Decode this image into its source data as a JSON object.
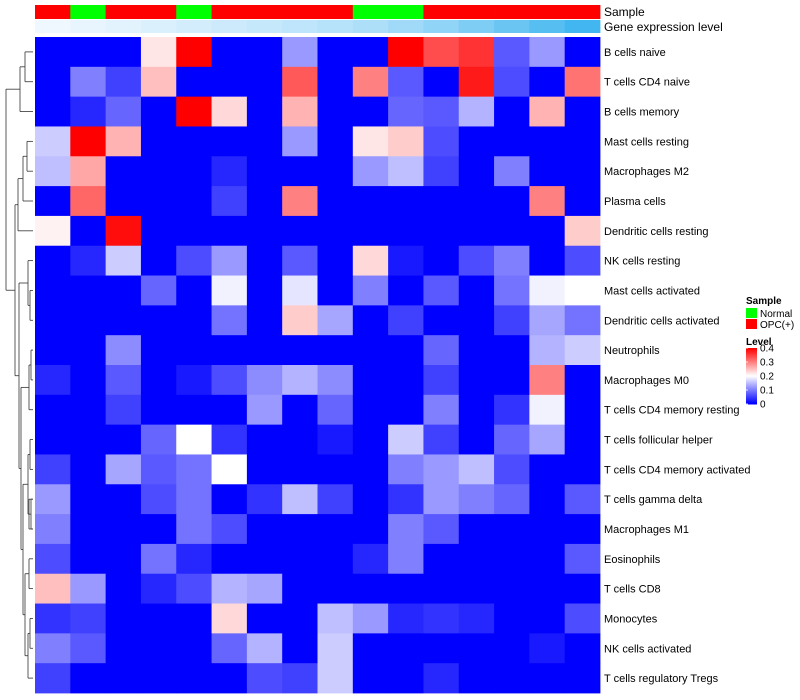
{
  "chart_data": {
    "type": "heatmap",
    "title": "",
    "annotation_labels": {
      "sample": "Sample",
      "gene_expression": "Gene expression level"
    },
    "rows": [
      "B cells naive",
      "T cells CD4 naive",
      "B cells memory",
      "Mast cells resting",
      "Macrophages M2",
      "Plasma cells",
      "Dendritic cells resting",
      "NK cells resting",
      "Mast cells activated",
      "Dendritic cells activated",
      "Neutrophils",
      "Macrophages M0",
      "T cells CD4 memory resting",
      "T cells follicular helper",
      "T cells CD4 memory activated",
      "T cells gamma delta",
      "Macrophages M1",
      "Eosinophils",
      "T cells CD8",
      "Monocytes",
      "NK cells activated",
      "T cells regulatory  Tregs"
    ],
    "column_count": 16,
    "sample_groups": [
      "OPC(+)",
      "Normal",
      "OPC(+)",
      "OPC(+)",
      "Normal",
      "OPC(+)",
      "OPC(+)",
      "OPC(+)",
      "OPC(+)",
      "Normal",
      "Normal",
      "OPC(+)",
      "OPC(+)",
      "OPC(+)",
      "OPC(+)",
      "OPC(+)"
    ],
    "gene_expression_level": [
      0.02,
      0.05,
      0.08,
      0.11,
      0.14,
      0.17,
      0.2,
      0.23,
      0.26,
      0.3,
      0.35,
      0.42,
      0.5,
      0.58,
      0.66,
      0.75
    ],
    "values": [
      [
        0,
        0,
        0,
        0.22,
        0.4,
        0,
        0,
        0.12,
        0,
        0,
        0.4,
        0.34,
        0.36,
        0.07,
        0.12,
        0
      ],
      [
        0,
        0.1,
        0.05,
        0.25,
        0,
        0,
        0,
        0.33,
        0,
        0.3,
        0.07,
        0,
        0.38,
        0.06,
        0,
        0.31
      ],
      [
        0,
        0.03,
        0.08,
        0,
        0.4,
        0.23,
        0,
        0.26,
        0,
        0,
        0.08,
        0.07,
        0.14,
        0,
        0.26,
        0
      ],
      [
        0.16,
        0.4,
        0.26,
        0,
        0,
        0,
        0,
        0.12,
        0,
        0.22,
        0.24,
        0.06,
        0,
        0,
        0,
        0
      ],
      [
        0.15,
        0.27,
        0,
        0,
        0,
        0.03,
        0,
        0,
        0,
        0.12,
        0.15,
        0.05,
        0,
        0.1,
        0,
        0
      ],
      [
        0,
        0.32,
        0,
        0,
        0,
        0.05,
        0,
        0.3,
        0,
        0,
        0,
        0,
        0,
        0,
        0.3,
        0
      ],
      [
        0.21,
        0,
        0.39,
        0,
        0,
        0,
        0,
        0,
        0,
        0,
        0,
        0,
        0,
        0,
        0,
        0.24
      ],
      [
        0,
        0.03,
        0.16,
        0,
        0.06,
        0.12,
        0,
        0.07,
        0,
        0.23,
        0.02,
        0,
        0.06,
        0.1,
        0,
        0.06
      ],
      [
        0,
        0,
        0,
        0.08,
        0,
        0.19,
        0,
        0.18,
        0,
        0.1,
        0,
        0.07,
        0,
        0.09,
        0.19,
        0.2
      ],
      [
        0,
        0,
        0,
        0,
        0,
        0.09,
        0,
        0.24,
        0.13,
        0,
        0.05,
        0,
        0,
        0.05,
        0.13,
        0.09
      ],
      [
        0,
        0,
        0.11,
        0,
        0,
        0,
        0,
        0,
        0,
        0,
        0,
        0.08,
        0,
        0,
        0.14,
        0.16
      ],
      [
        0.03,
        0,
        0.07,
        0,
        0.02,
        0.06,
        0.11,
        0.14,
        0.11,
        0,
        0,
        0.05,
        0,
        0,
        0.3,
        0
      ],
      [
        0,
        0,
        0.05,
        0,
        0,
        0,
        0.12,
        0,
        0.08,
        0,
        0,
        0.1,
        0,
        0.04,
        0.19,
        0
      ],
      [
        0,
        0,
        0,
        0.08,
        0.2,
        0.04,
        0,
        0,
        0.02,
        0,
        0.16,
        0.05,
        0,
        0.08,
        0.13,
        0
      ],
      [
        0.05,
        0,
        0.13,
        0.07,
        0.09,
        0.2,
        0,
        0,
        0,
        0,
        0.1,
        0.12,
        0.15,
        0.06,
        0,
        0
      ],
      [
        0.12,
        0,
        0,
        0.06,
        0.09,
        0,
        0.04,
        0.15,
        0.05,
        0,
        0.04,
        0.12,
        0.1,
        0.08,
        0,
        0.07
      ],
      [
        0.1,
        0,
        0,
        0,
        0.09,
        0.06,
        0,
        0,
        0,
        0,
        0.1,
        0.07,
        0,
        0,
        0,
        0
      ],
      [
        0.06,
        0,
        0,
        0.09,
        0.03,
        0,
        0,
        0,
        0,
        0.03,
        0.1,
        0,
        0,
        0,
        0,
        0.07
      ],
      [
        0.25,
        0.12,
        0,
        0.03,
        0.06,
        0.14,
        0.13,
        0,
        0,
        0,
        0,
        0,
        0,
        0,
        0,
        0
      ],
      [
        0.04,
        0.05,
        0,
        0,
        0,
        0.23,
        0,
        0,
        0.15,
        0.12,
        0.03,
        0.04,
        0.03,
        0,
        0,
        0.06
      ],
      [
        0.1,
        0.07,
        0,
        0,
        0,
        0.08,
        0.14,
        0,
        0.16,
        0,
        0,
        0,
        0,
        0,
        0.02,
        0
      ],
      [
        0.05,
        0,
        0,
        0,
        0,
        0,
        0.06,
        0.05,
        0.16,
        0,
        0,
        0.03,
        0,
        0,
        0,
        0
      ]
    ],
    "color_scale": {
      "min": 0,
      "max": 0.4,
      "colors": [
        "#0000ff",
        "#ffffff",
        "#ff0000"
      ],
      "midpoint": 0.2
    },
    "legend": {
      "position": "right",
      "sample_title": "Sample",
      "sample_entries": [
        {
          "label": "Normal",
          "color": "#00ff00"
        },
        {
          "label": "OPC(+)",
          "color": "#ff0000"
        }
      ],
      "level_title": "Level",
      "level_ticks": [
        "0",
        "0.1",
        "0.2",
        "0.3",
        "0.4"
      ],
      "level_tick_values": [
        0,
        0.1,
        0.2,
        0.3,
        0.4
      ]
    },
    "annotation_colors": {
      "gene_expression_low": "#f0f8ff",
      "gene_expression_high": "#41b6f0"
    }
  }
}
